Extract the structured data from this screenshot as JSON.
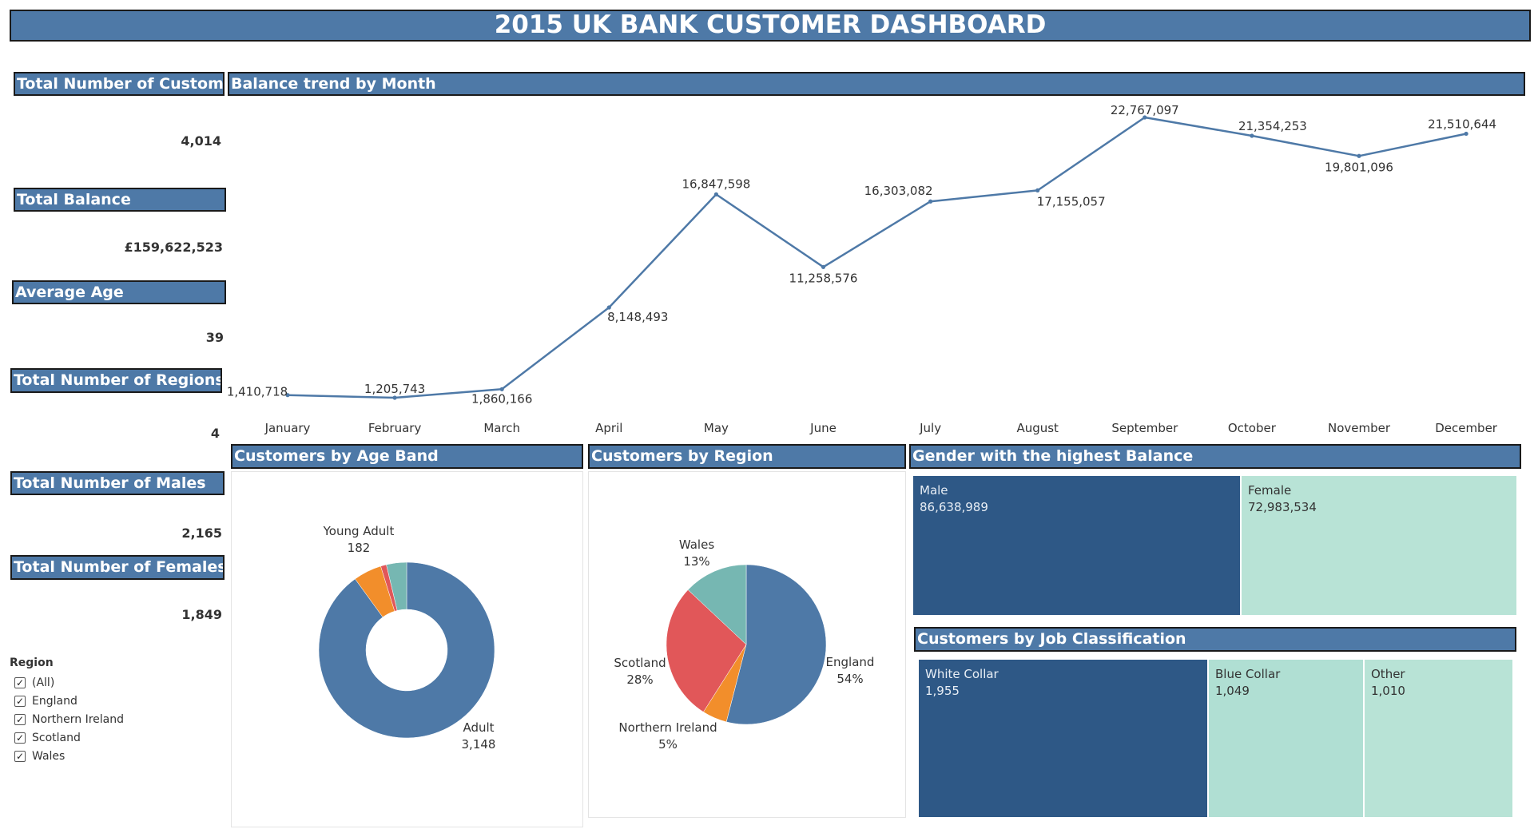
{
  "title": "2015 UK BANK CUSTOMER DASHBOARD",
  "kpis": [
    {
      "label": "Total Number of Customers",
      "value": "4,014"
    },
    {
      "label": "Total Balance",
      "value": "£159,622,523"
    },
    {
      "label": "Average Age",
      "value": "39"
    },
    {
      "label": "Total Number of Regions",
      "value": "4"
    },
    {
      "label": "Total Number of Males",
      "value": "2,165"
    },
    {
      "label": "Total Number of Females",
      "value": "1,849"
    }
  ],
  "filter": {
    "title": "Region",
    "options": [
      {
        "label": "(All)",
        "checked": true
      },
      {
        "label": "England",
        "checked": true
      },
      {
        "label": "Northern Ireland",
        "checked": true
      },
      {
        "label": "Scotland",
        "checked": true
      },
      {
        "label": "Wales",
        "checked": true
      }
    ]
  },
  "sections": {
    "trend": "Balance trend by Month",
    "age_band": "Customers by Age Band",
    "region": "Customers by Region",
    "gender": "Gender with the highest Balance",
    "job": "Customers by Job Classification"
  },
  "colors": {
    "header": "#4e79a7",
    "line": "#4e79a7",
    "male": "#2e5886",
    "female": "#b8e3d6",
    "white_collar": "#2e5886",
    "blue_collar": "#b0dfd3",
    "other": "#b8e3d6"
  },
  "chart_data": [
    {
      "type": "line",
      "title": "Balance trend by Month",
      "categories": [
        "January",
        "February",
        "March",
        "April",
        "May",
        "June",
        "July",
        "August",
        "September",
        "October",
        "November",
        "December"
      ],
      "values": [
        1410718,
        1205743,
        1860166,
        8148493,
        16847598,
        11258576,
        16303082,
        17155057,
        22767097,
        21354253,
        19801096,
        21510644
      ],
      "labels": [
        "1,410,718",
        "1,205,743",
        "1,860,166",
        "8,148,493",
        "16,847,598",
        "11,258,576",
        "16,303,082",
        "17,155,057",
        "22,767,097",
        "21,354,253",
        "19,801,096",
        "21,510,644"
      ],
      "grid": false
    },
    {
      "type": "pie",
      "title": "Customers by Age Band",
      "donut": true,
      "slices": [
        {
          "label": "Adult",
          "value": 3148,
          "value_label": "3,148",
          "color": "#4e79a7"
        },
        {
          "label": "Young Adult",
          "value": 182,
          "value_label": "182",
          "color": "#f28e2b"
        },
        {
          "label": "",
          "value": 37,
          "value_label": "",
          "color": "#e15759"
        },
        {
          "label": "",
          "value": 130,
          "value_label": "",
          "color": "#76b7b2"
        }
      ]
    },
    {
      "type": "pie",
      "title": "Customers by Region",
      "slices": [
        {
          "label": "England",
          "value": 54,
          "value_label": "54%",
          "color": "#4e79a7"
        },
        {
          "label": "Northern Ireland",
          "value": 5,
          "value_label": "5%",
          "color": "#f28e2b"
        },
        {
          "label": "Scotland",
          "value": 28,
          "value_label": "28%",
          "color": "#e15759"
        },
        {
          "label": "Wales",
          "value": 13,
          "value_label": "13%",
          "color": "#76b7b2"
        }
      ]
    },
    {
      "type": "treemap",
      "title": "Gender with the highest Balance",
      "items": [
        {
          "label": "Male",
          "value": 86638989,
          "value_label": "86,638,989"
        },
        {
          "label": "Female",
          "value": 72983534,
          "value_label": "72,983,534"
        }
      ]
    },
    {
      "type": "treemap",
      "title": "Customers by Job Classification",
      "items": [
        {
          "label": "White Collar",
          "value": 1955,
          "value_label": "1,955"
        },
        {
          "label": "Blue Collar",
          "value": 1049,
          "value_label": "1,049"
        },
        {
          "label": "Other",
          "value": 1010,
          "value_label": "1,010"
        }
      ]
    }
  ]
}
